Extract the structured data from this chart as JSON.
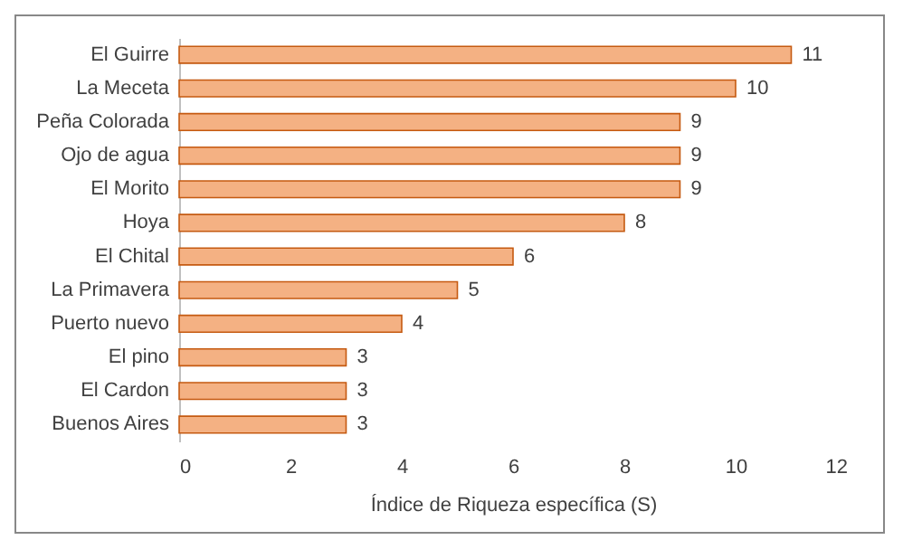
{
  "chart_data": {
    "type": "bar",
    "orientation": "horizontal",
    "xlabel": "Índice de Riqueza específica (S)",
    "categories": [
      "El Guirre",
      "La Meceta",
      "Peña Colorada",
      "Ojo de agua",
      "El Morito",
      "Hoya",
      "El Chital",
      "La Primavera",
      "Puerto nuevo",
      "El pino",
      "El Cardon",
      "Buenos Aires"
    ],
    "values": [
      11,
      10,
      9,
      9,
      9,
      8,
      6,
      5,
      4,
      3,
      3,
      3
    ],
    "color": "#f4b183",
    "xlim": [
      0,
      12
    ],
    "xticks": [
      0,
      2,
      4,
      6,
      8,
      10,
      12
    ],
    "data_labels": true,
    "grid": false
  }
}
